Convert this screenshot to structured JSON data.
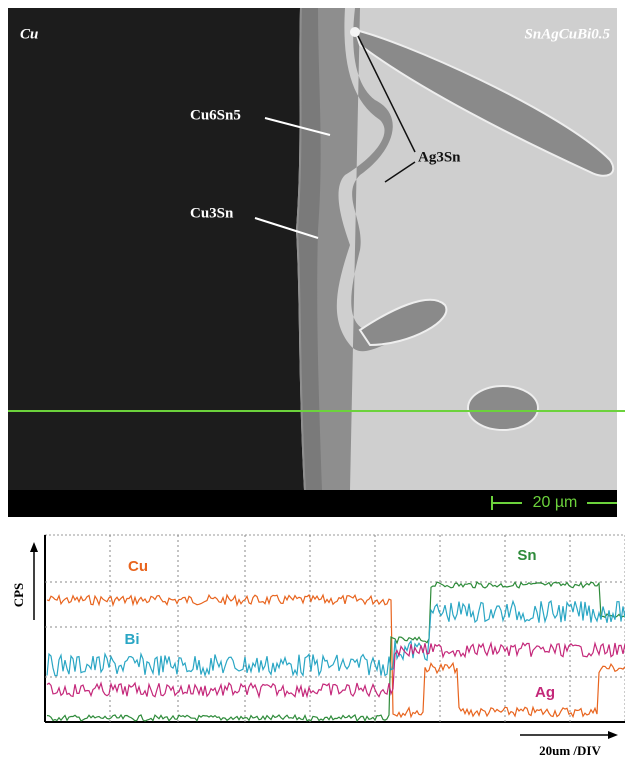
{
  "micrograph": {
    "left_label": "Cu",
    "right_label": "SnAgCuBi0.5",
    "imc_upper": "Cu6Sn5",
    "imc_lower": "Cu3Sn",
    "particle": "Ag3Sn",
    "scale_bar": "20 µm"
  },
  "line_scan": {
    "y_label": "CPS",
    "x_label": "20um /DIV",
    "series": [
      {
        "name": "Cu",
        "color": "#e8641e"
      },
      {
        "name": "Sn",
        "color": "#2e8b3a"
      },
      {
        "name": "Bi",
        "color": "#2aa6c4"
      },
      {
        "name": "Ag",
        "color": "#c4287a"
      }
    ]
  }
}
